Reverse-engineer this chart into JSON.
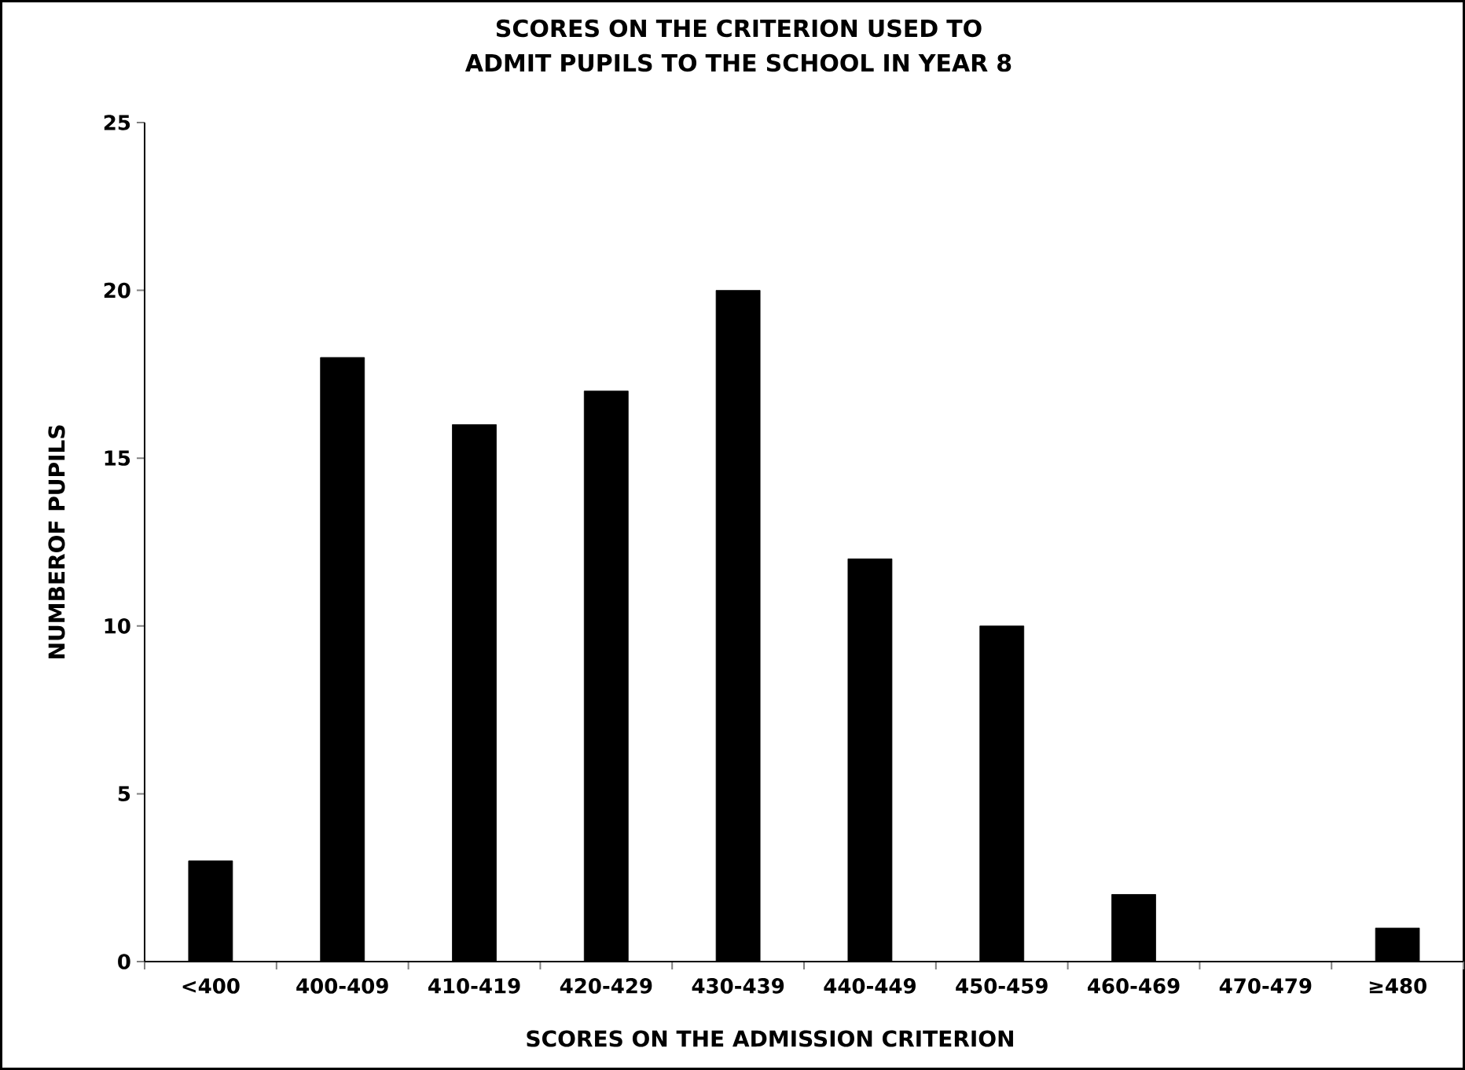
{
  "chart_data": {
    "type": "bar",
    "title": "SCORES ON THE CRITERION USED TO ADMIT PUPILS TO THE SCHOOL IN YEAR 8",
    "xlabel": "SCORES ON THE ADMISSION CRITERION",
    "ylabel": "NUMBEROF PUPILS",
    "categories": [
      "<400",
      "400-409",
      "410-419",
      "420-429",
      "430-439",
      "440-449",
      "450-459",
      "460-469",
      "470-479",
      "≥480"
    ],
    "values": [
      3,
      18,
      16,
      17,
      20,
      12,
      10,
      2,
      0,
      1
    ],
    "color": "#000000",
    "ylim": [
      0,
      25
    ],
    "yticks": [
      0,
      5,
      10,
      15,
      20,
      25
    ]
  }
}
